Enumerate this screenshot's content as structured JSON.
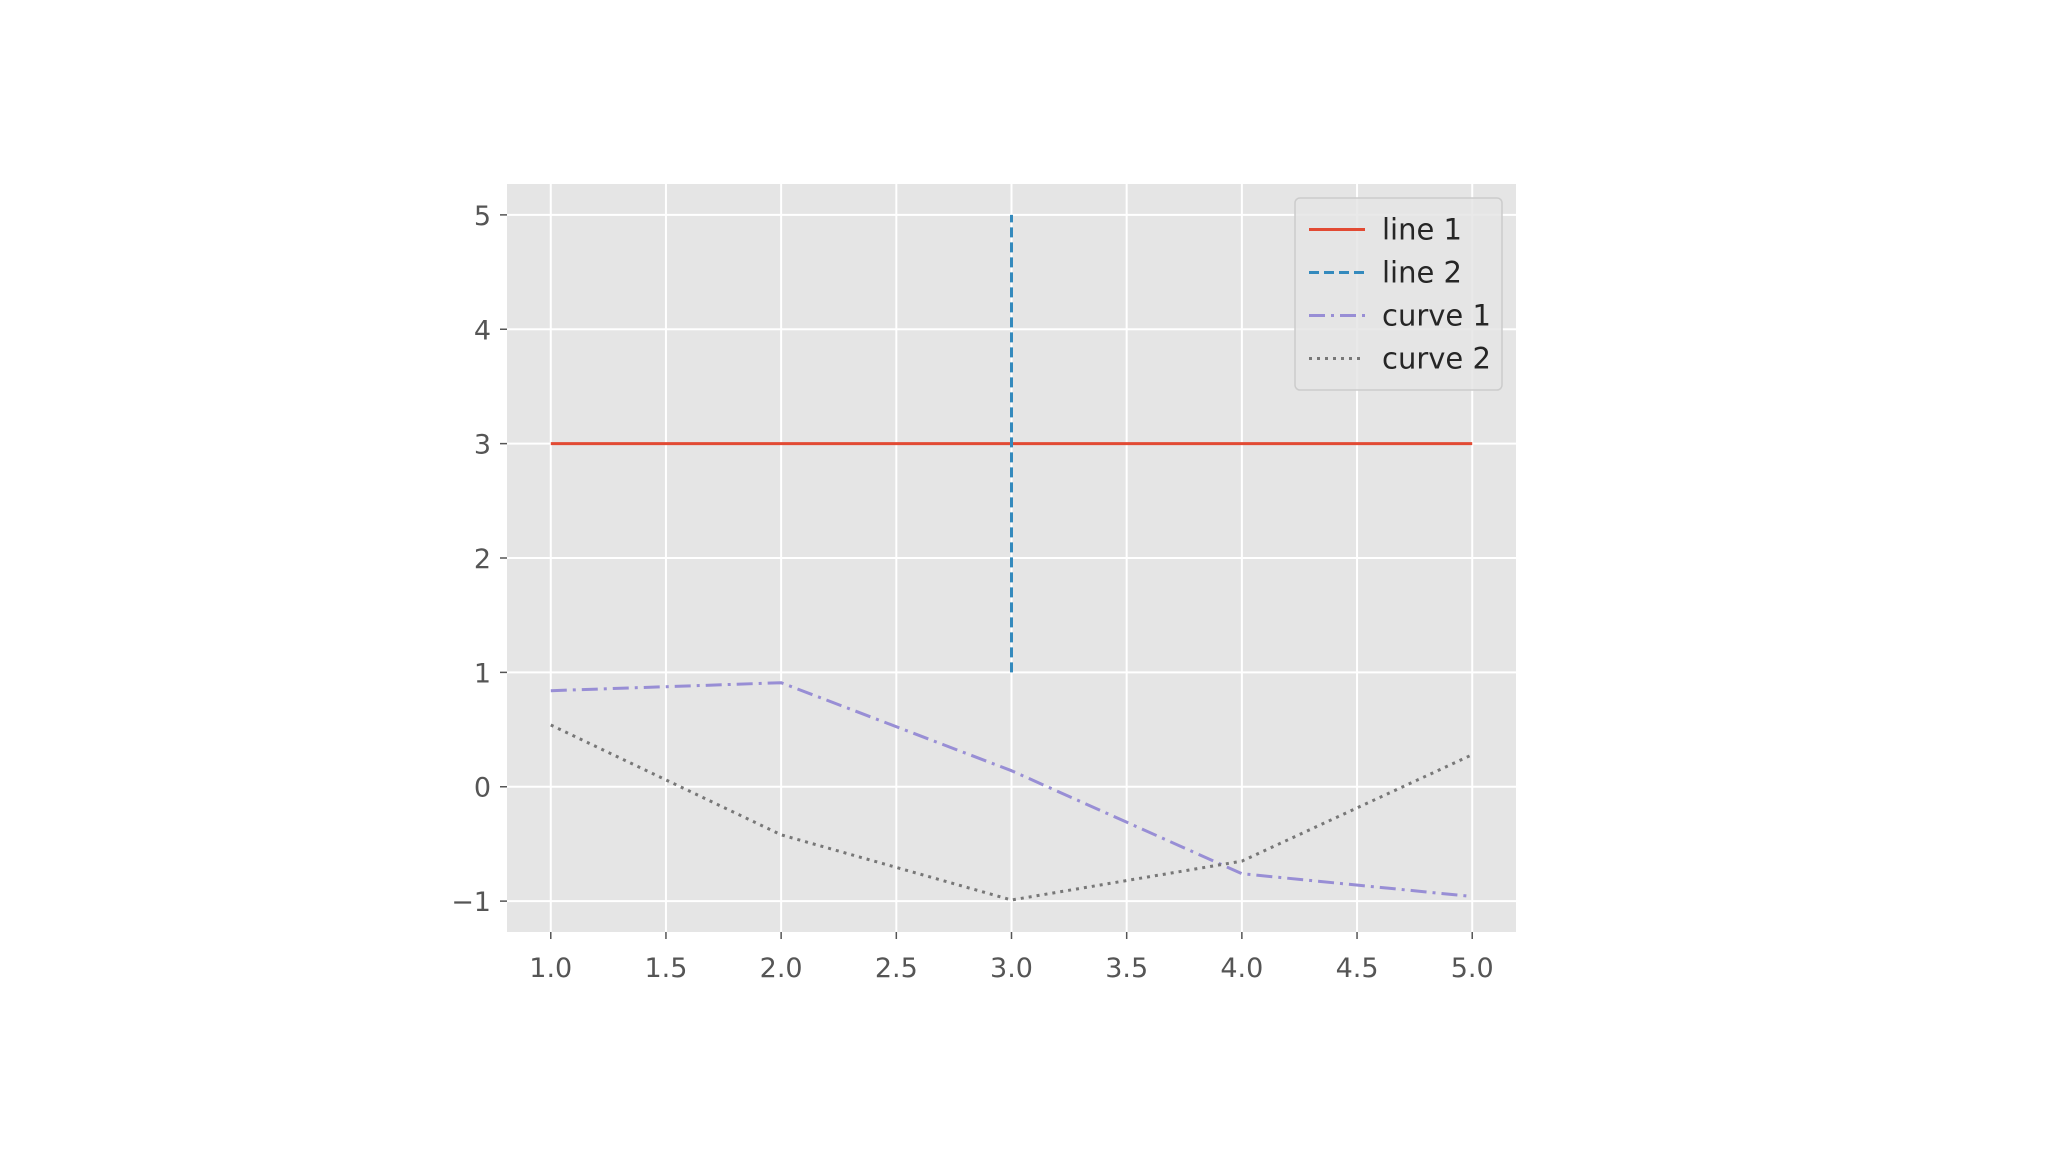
{
  "chart_data": {
    "type": "line",
    "title": "",
    "xlabel": "",
    "ylabel": "",
    "xlim": [
      0.81,
      5.19
    ],
    "ylim": [
      -1.27,
      5.27
    ],
    "x_ticks": [
      1.0,
      1.5,
      2.0,
      2.5,
      3.0,
      3.5,
      4.0,
      4.5,
      5.0
    ],
    "x_tick_labels": [
      "1.0",
      "1.5",
      "2.0",
      "2.5",
      "3.0",
      "3.5",
      "4.0",
      "4.5",
      "5.0"
    ],
    "y_ticks": [
      -1,
      0,
      1,
      2,
      3,
      4,
      5
    ],
    "y_tick_labels": [
      "−1",
      "0",
      "1",
      "2",
      "3",
      "4",
      "5"
    ],
    "grid": true,
    "style": "ggplot",
    "legend_position": "upper right",
    "series": [
      {
        "name": "line 1",
        "x": [
          1,
          5
        ],
        "y": [
          3,
          3
        ],
        "color": "#E24A33",
        "dash": "solid"
      },
      {
        "name": "line 2",
        "x": [
          3,
          3
        ],
        "y": [
          1,
          5
        ],
        "color": "#348ABD",
        "dash": "dashed"
      },
      {
        "name": "curve 1",
        "x": [
          1,
          2,
          3,
          4,
          5
        ],
        "y": [
          0.84,
          0.91,
          0.14,
          -0.76,
          -0.96
        ],
        "color": "#988ED5",
        "dash": "dashdot"
      },
      {
        "name": "curve 2",
        "x": [
          1,
          2,
          3,
          4,
          5
        ],
        "y": [
          0.54,
          -0.42,
          -0.99,
          -0.65,
          0.28
        ],
        "color": "#777777",
        "dash": "dotted"
      }
    ]
  }
}
